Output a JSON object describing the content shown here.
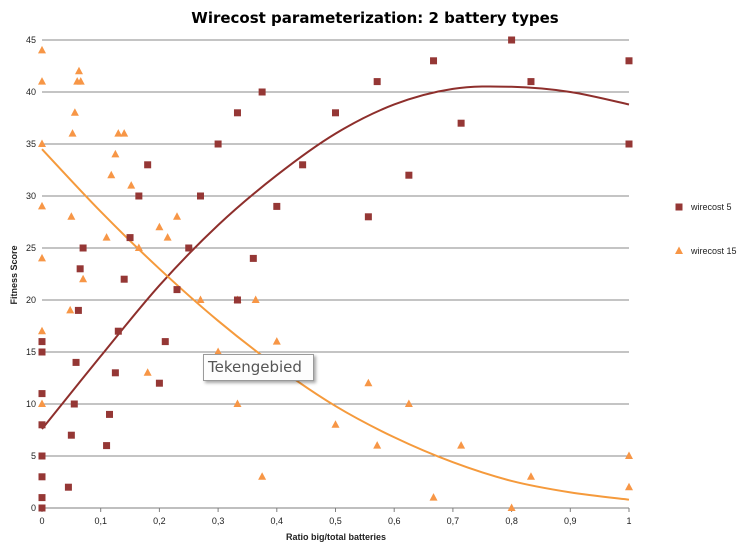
{
  "chart_data": {
    "type": "scatter",
    "title": "Wirecost parameterization: 2 battery types",
    "xlabel": "Ratio big/total batteries",
    "ylabel": "Fitness Score",
    "xlim": [
      0,
      1
    ],
    "ylim": [
      0,
      45
    ],
    "x_ticks": [
      "0",
      "0,1",
      "0,2",
      "0,3",
      "0,4",
      "0,5",
      "0,6",
      "0,7",
      "0,8",
      "0,9",
      "1"
    ],
    "y_ticks": [
      "0",
      "5",
      "10",
      "15",
      "20",
      "25",
      "30",
      "35",
      "40",
      "45"
    ],
    "grid": "horizontal",
    "legend_position": "right",
    "series": [
      {
        "name": "wirecost 5",
        "marker": "square",
        "color": "#953735",
        "trend_color": "#8e2f2c",
        "points": [
          [
            0,
            0
          ],
          [
            0,
            1
          ],
          [
            0,
            3
          ],
          [
            0,
            5
          ],
          [
            0,
            8
          ],
          [
            0,
            11
          ],
          [
            0,
            15
          ],
          [
            0,
            16
          ],
          [
            0.045,
            2
          ],
          [
            0.05,
            7
          ],
          [
            0.055,
            10
          ],
          [
            0.058,
            14
          ],
          [
            0.062,
            19
          ],
          [
            0.065,
            23
          ],
          [
            0.07,
            25
          ],
          [
            0.11,
            6
          ],
          [
            0.115,
            9
          ],
          [
            0.125,
            13
          ],
          [
            0.13,
            17
          ],
          [
            0.14,
            22
          ],
          [
            0.15,
            26
          ],
          [
            0.165,
            30
          ],
          [
            0.18,
            33
          ],
          [
            0.2,
            12
          ],
          [
            0.21,
            16
          ],
          [
            0.23,
            21
          ],
          [
            0.25,
            25
          ],
          [
            0.27,
            30
          ],
          [
            0.3,
            35
          ],
          [
            0.333,
            20
          ],
          [
            0.333,
            38
          ],
          [
            0.36,
            24
          ],
          [
            0.375,
            40
          ],
          [
            0.4,
            29
          ],
          [
            0.444,
            33
          ],
          [
            0.5,
            38
          ],
          [
            0.556,
            28
          ],
          [
            0.571,
            41
          ],
          [
            0.625,
            32
          ],
          [
            0.667,
            43
          ],
          [
            0.714,
            37
          ],
          [
            0.8,
            45
          ],
          [
            0.833,
            41
          ],
          [
            1,
            35
          ],
          [
            1,
            43
          ]
        ],
        "trendline": [
          [
            0,
            7.6
          ],
          [
            0.1,
            14.6
          ],
          [
            0.2,
            21.4
          ],
          [
            0.3,
            27.2
          ],
          [
            0.4,
            32.0
          ],
          [
            0.5,
            36.0
          ],
          [
            0.6,
            38.8
          ],
          [
            0.7,
            40.3
          ],
          [
            0.8,
            40.5
          ],
          [
            0.9,
            40.0
          ],
          [
            1,
            38.8
          ]
        ]
      },
      {
        "name": "wirecost 15",
        "marker": "triangle",
        "color": "#f79646",
        "trend_color": "#f59a3c",
        "points": [
          [
            0,
            10
          ],
          [
            0,
            17
          ],
          [
            0,
            24
          ],
          [
            0,
            29
          ],
          [
            0,
            35
          ],
          [
            0,
            41
          ],
          [
            0,
            44
          ],
          [
            0.048,
            19
          ],
          [
            0.05,
            28
          ],
          [
            0.052,
            36
          ],
          [
            0.056,
            38
          ],
          [
            0.06,
            41
          ],
          [
            0.063,
            42
          ],
          [
            0.066,
            41
          ],
          [
            0.07,
            22
          ],
          [
            0.11,
            26
          ],
          [
            0.118,
            32
          ],
          [
            0.125,
            34
          ],
          [
            0.13,
            36
          ],
          [
            0.14,
            36
          ],
          [
            0.152,
            31
          ],
          [
            0.165,
            25
          ],
          [
            0.18,
            13
          ],
          [
            0.2,
            27
          ],
          [
            0.214,
            26
          ],
          [
            0.23,
            28
          ],
          [
            0.27,
            20
          ],
          [
            0.3,
            15
          ],
          [
            0.333,
            10
          ],
          [
            0.333,
            20
          ],
          [
            0.364,
            20
          ],
          [
            0.375,
            3
          ],
          [
            0.4,
            16
          ],
          [
            0.5,
            8
          ],
          [
            0.556,
            12
          ],
          [
            0.571,
            6
          ],
          [
            0.625,
            10
          ],
          [
            0.667,
            1
          ],
          [
            0.714,
            6
          ],
          [
            0.8,
            0
          ],
          [
            0.833,
            3
          ],
          [
            1,
            2
          ],
          [
            1,
            5
          ]
        ],
        "trendline": [
          [
            0,
            34.5
          ],
          [
            0.1,
            28.5
          ],
          [
            0.2,
            23.0
          ],
          [
            0.3,
            18.0
          ],
          [
            0.4,
            13.6
          ],
          [
            0.5,
            9.8
          ],
          [
            0.6,
            6.8
          ],
          [
            0.7,
            4.4
          ],
          [
            0.8,
            2.6
          ],
          [
            0.9,
            1.5
          ],
          [
            1,
            0.8
          ]
        ]
      }
    ]
  },
  "tooltip": {
    "text": "Tekengebied"
  }
}
